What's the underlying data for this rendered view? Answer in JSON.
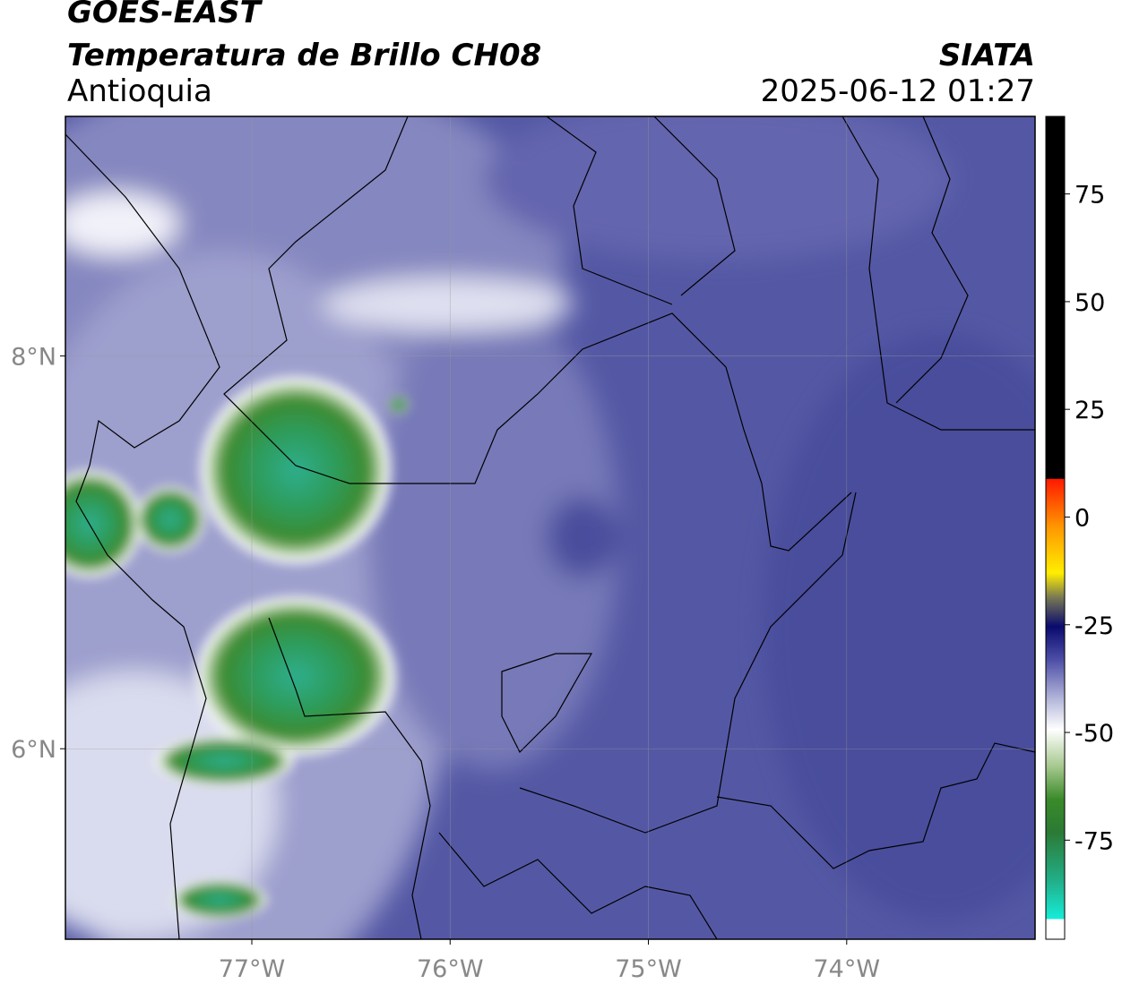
{
  "header": {
    "title": "GOES-EAST",
    "subtitle": "Temperatura de Brillo CH08",
    "region": "Antioquia",
    "source": "SIATA",
    "datetime": "2025-06-12 01:27"
  },
  "map": {
    "xlim": [
      -77.94,
      -73.05
    ],
    "ylim": [
      5.03,
      9.22
    ],
    "xticks": [
      {
        "value": -77,
        "label": "77°W"
      },
      {
        "value": -76,
        "label": "76°W"
      },
      {
        "value": -75,
        "label": "75°W"
      },
      {
        "value": -74,
        "label": "74°W"
      }
    ],
    "yticks": [
      {
        "value": 8,
        "label": "8°N"
      },
      {
        "value": 6,
        "label": "6°N"
      }
    ]
  },
  "colorbar": {
    "lim": [
      -98,
      93
    ],
    "ticks": [
      75,
      50,
      25,
      0,
      -25,
      -50,
      -75
    ]
  }
}
